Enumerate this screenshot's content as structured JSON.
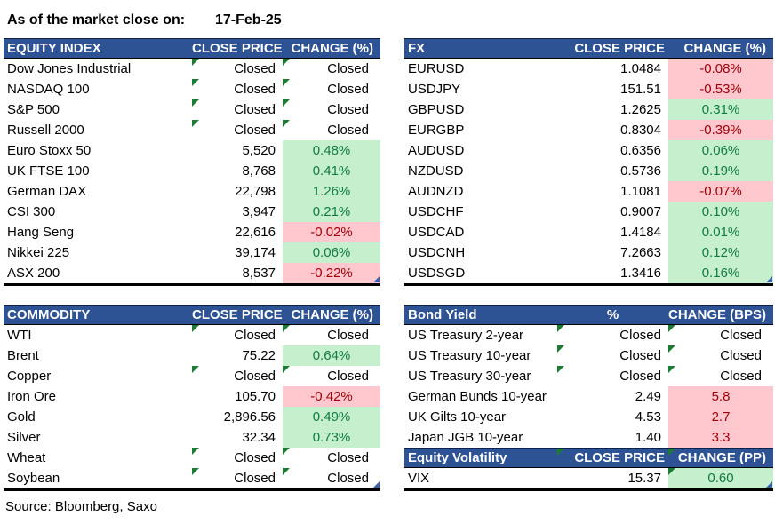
{
  "page": {
    "as_of_label": "As of the market close on:",
    "as_of_date": "17-Feb-25",
    "source": "Source: Bloomberg, Saxo"
  },
  "colors": {
    "header_bg": "#2E5394",
    "header_text": "#FFFFFF",
    "positive_bg": "#C6EFCE",
    "positive_text": "#107C41",
    "negative_bg": "#FFC7CE",
    "negative_text": "#9C0006",
    "flag_triangle": "#1E7B34",
    "corner_marker": "#3A62AE"
  },
  "tables": {
    "equity": {
      "headers": [
        "EQUITY INDEX",
        "CLOSE PRICE",
        "CHANGE (%)"
      ],
      "rows": [
        {
          "name": "Dow Jones Industrial",
          "close": "Closed",
          "change": "Closed",
          "state": "closed",
          "flag_close": true,
          "flag_change": true
        },
        {
          "name": "NASDAQ 100",
          "close": "Closed",
          "change": "Closed",
          "state": "closed",
          "flag_close": true,
          "flag_change": true
        },
        {
          "name": "S&P 500",
          "close": "Closed",
          "change": "Closed",
          "state": "closed",
          "flag_close": true,
          "flag_change": true
        },
        {
          "name": "Russell 2000",
          "close": "Closed",
          "change": "Closed",
          "state": "closed",
          "flag_close": true,
          "flag_change": true
        },
        {
          "name": "Euro Stoxx 50",
          "close": "5,520",
          "change": "0.48%",
          "state": "up"
        },
        {
          "name": "UK FTSE 100",
          "close": "8,768",
          "change": "0.41%",
          "state": "up"
        },
        {
          "name": "German DAX",
          "close": "22,798",
          "change": "1.26%",
          "state": "up"
        },
        {
          "name": "CSI 300",
          "close": "3,947",
          "change": "0.21%",
          "state": "up"
        },
        {
          "name": "Hang Seng",
          "close": "22,616",
          "change": "-0.02%",
          "state": "down"
        },
        {
          "name": "Nikkei 225",
          "close": "39,174",
          "change": "0.06%",
          "state": "up"
        },
        {
          "name": "ASX 200",
          "close": "8,537",
          "change": "-0.22%",
          "state": "down",
          "corner": true
        }
      ]
    },
    "fx": {
      "headers": [
        "FX",
        "CLOSE PRICE",
        "CHANGE (%)"
      ],
      "rows": [
        {
          "name": "EURUSD",
          "close": "1.0484",
          "change": "-0.08%",
          "state": "down"
        },
        {
          "name": "USDJPY",
          "close": "151.51",
          "change": "-0.53%",
          "state": "down"
        },
        {
          "name": "GBPUSD",
          "close": "1.2625",
          "change": "0.31%",
          "state": "up"
        },
        {
          "name": "EURGBP",
          "close": "0.8304",
          "change": "-0.39%",
          "state": "down"
        },
        {
          "name": "AUDUSD",
          "close": "0.6356",
          "change": "0.06%",
          "state": "up"
        },
        {
          "name": "NZDUSD",
          "close": "0.5736",
          "change": "0.19%",
          "state": "up"
        },
        {
          "name": "AUDNZD",
          "close": "1.1081",
          "change": "-0.07%",
          "state": "down"
        },
        {
          "name": "USDCHF",
          "close": "0.9007",
          "change": "0.10%",
          "state": "up"
        },
        {
          "name": "USDCAD",
          "close": "1.4184",
          "change": "0.01%",
          "state": "up"
        },
        {
          "name": "USDCNH",
          "close": "7.2663",
          "change": "0.12%",
          "state": "up"
        },
        {
          "name": "USDSGD",
          "close": "1.3416",
          "change": "0.16%",
          "state": "up",
          "corner": true
        }
      ]
    },
    "commodity": {
      "headers": [
        "COMMODITY",
        "CLOSE PRICE",
        "CHANGE (%)"
      ],
      "rows": [
        {
          "name": "WTI",
          "close": "Closed",
          "change": "Closed",
          "state": "closed",
          "flag_close": true,
          "flag_change": true
        },
        {
          "name": "Brent",
          "close": "75.22",
          "change": "0.64%",
          "state": "up"
        },
        {
          "name": "Copper",
          "close": "Closed",
          "change": "Closed",
          "state": "closed",
          "flag_close": true,
          "flag_change": true
        },
        {
          "name": "Iron Ore",
          "close": "105.70",
          "change": "-0.42%",
          "state": "down"
        },
        {
          "name": "Gold",
          "close": "2,896.56",
          "change": "0.49%",
          "state": "up"
        },
        {
          "name": "Silver",
          "close": "32.34",
          "change": "0.73%",
          "state": "up"
        },
        {
          "name": "Wheat",
          "close": "Closed",
          "change": "Closed",
          "state": "closed",
          "flag_close": true,
          "flag_change": true
        },
        {
          "name": "Soybean",
          "close": "Closed",
          "change": "Closed",
          "state": "closed",
          "flag_close": true,
          "flag_change": true,
          "corner": true
        }
      ]
    },
    "bond": {
      "headers": [
        "Bond Yield",
        "%",
        "CHANGE (BPS)"
      ],
      "rows": [
        {
          "name": "US Treasury 2-year",
          "close": "Closed",
          "change": "Closed",
          "state": "closed",
          "flag_close": true,
          "flag_change": true
        },
        {
          "name": "US Treasury 10-year",
          "close": "Closed",
          "change": "Closed",
          "state": "closed",
          "flag_close": true,
          "flag_change": true
        },
        {
          "name": "US Treasury 30-year",
          "close": "Closed",
          "change": "Closed",
          "state": "closed",
          "flag_close": true,
          "flag_change": true
        },
        {
          "name": "German Bunds 10-year",
          "close": "2.49",
          "change": "5.8",
          "state": "down"
        },
        {
          "name": "UK Gilts 10-year",
          "close": "4.53",
          "change": "2.7",
          "state": "down"
        },
        {
          "name": "Japan JGB 10-year",
          "close": "1.40",
          "change": "3.3",
          "state": "down"
        }
      ]
    },
    "volatility": {
      "headers": [
        "Equity Volatility",
        "CLOSE PRICE",
        "CHANGE (PP)"
      ],
      "rows": [
        {
          "name": "VIX",
          "close": "15.37",
          "change": "0.60",
          "state": "up",
          "flag_change": true,
          "corner": true
        }
      ]
    }
  }
}
